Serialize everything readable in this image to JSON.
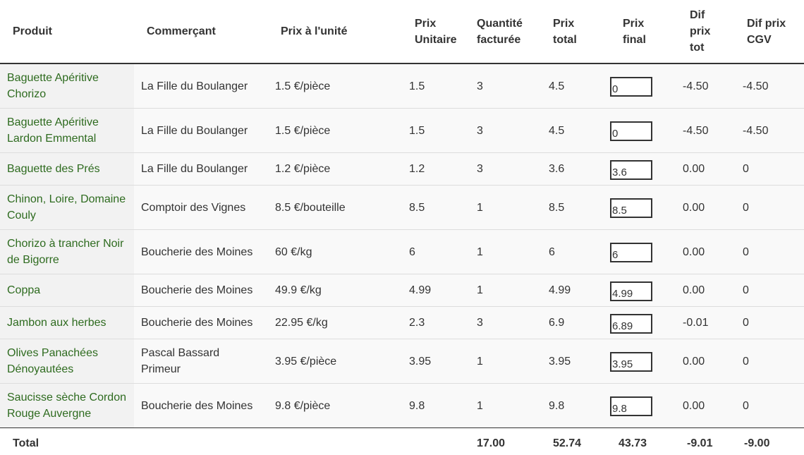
{
  "headers": {
    "produit": "Produit",
    "commercant": "Commerçant",
    "prix_unite": "Prix à l'unité",
    "prix_unitaire_1": "Prix",
    "prix_unitaire_2": "Unitaire",
    "quantite_1": "Quantité",
    "quantite_2": "facturée",
    "prix_total_1": "Prix",
    "prix_total_2": "total",
    "prix_final_1": "Prix",
    "prix_final_2": "final",
    "dif_tot_1": "Dif",
    "dif_tot_2": "prix",
    "dif_tot_3": "tot",
    "dif_cgv_1": "Dif prix",
    "dif_cgv_2": "CGV"
  },
  "rows": [
    {
      "produit_l1": "Baguette Apéritive",
      "produit_l2": "Chorizo",
      "commercant_l1": "La Fille du Boulanger",
      "commercant_l2": "",
      "prix_unite": "1.5 €/pièce",
      "prix_unitaire": "1.5",
      "quantite": "3",
      "prix_total": "4.5",
      "prix_final": "0",
      "dif_tot": "-4.50",
      "dif_cgv": "-4.50"
    },
    {
      "produit_l1": "Baguette Apéritive",
      "produit_l2": "Lardon Emmental",
      "commercant_l1": "La Fille du Boulanger",
      "commercant_l2": "",
      "prix_unite": "1.5 €/pièce",
      "prix_unitaire": "1.5",
      "quantite": "3",
      "prix_total": "4.5",
      "prix_final": "0",
      "dif_tot": "-4.50",
      "dif_cgv": "-4.50"
    },
    {
      "produit_l1": "Baguette des Prés",
      "produit_l2": "",
      "commercant_l1": "La Fille du Boulanger",
      "commercant_l2": "",
      "prix_unite": "1.2 €/pièce",
      "prix_unitaire": "1.2",
      "quantite": "3",
      "prix_total": "3.6",
      "prix_final": "3.6",
      "dif_tot": "0.00",
      "dif_cgv": "0"
    },
    {
      "produit_l1": "Chinon, Loire, Domaine",
      "produit_l2": "Couly",
      "commercant_l1": "Comptoir des Vignes",
      "commercant_l2": "",
      "prix_unite": "8.5 €/bouteille",
      "prix_unitaire": "8.5",
      "quantite": "1",
      "prix_total": "8.5",
      "prix_final": "8.5",
      "dif_tot": "0.00",
      "dif_cgv": "0"
    },
    {
      "produit_l1": "Chorizo à trancher Noir",
      "produit_l2": "de Bigorre",
      "commercant_l1": "Boucherie des Moines",
      "commercant_l2": "",
      "prix_unite": "60 €/kg",
      "prix_unitaire": "6",
      "quantite": "1",
      "prix_total": "6",
      "prix_final": "6",
      "dif_tot": "0.00",
      "dif_cgv": "0"
    },
    {
      "produit_l1": "Coppa",
      "produit_l2": "",
      "commercant_l1": "Boucherie des Moines",
      "commercant_l2": "",
      "prix_unite": "49.9 €/kg",
      "prix_unitaire": "4.99",
      "quantite": "1",
      "prix_total": "4.99",
      "prix_final": "4.99",
      "dif_tot": "0.00",
      "dif_cgv": "0"
    },
    {
      "produit_l1": "Jambon aux herbes",
      "produit_l2": "",
      "commercant_l1": "Boucherie des Moines",
      "commercant_l2": "",
      "prix_unite": "22.95 €/kg",
      "prix_unitaire": "2.3",
      "quantite": "3",
      "prix_total": "6.9",
      "prix_final": "6.89",
      "dif_tot": "-0.01",
      "dif_cgv": "0"
    },
    {
      "produit_l1": "Olives Panachées",
      "produit_l2": "Dénoyautées",
      "commercant_l1": "Pascal Bassard",
      "commercant_l2": "Primeur",
      "prix_unite": "3.95 €/pièce",
      "prix_unitaire": "3.95",
      "quantite": "1",
      "prix_total": "3.95",
      "prix_final": "3.95",
      "dif_tot": "0.00",
      "dif_cgv": "0"
    },
    {
      "produit_l1": "Saucisse sèche Cordon",
      "produit_l2": "Rouge Auvergne",
      "commercant_l1": "Boucherie des Moines",
      "commercant_l2": "",
      "prix_unite": "9.8 €/pièce",
      "prix_unitaire": "9.8",
      "quantite": "1",
      "prix_total": "9.8",
      "prix_final": "9.8",
      "dif_tot": "0.00",
      "dif_cgv": "0"
    }
  ],
  "footer": {
    "label": "Total",
    "quantite": "17.00",
    "prix_total": "52.74",
    "prix_final": "43.73",
    "dif_tot": "-9.01",
    "dif_cgv": "-9.00"
  },
  "colors": {
    "product_link": "#2e6b1f",
    "text": "#333333",
    "row_bg": "#f9f9f9",
    "product_cell_bg": "#f2f2f2",
    "border": "#dddddd"
  }
}
